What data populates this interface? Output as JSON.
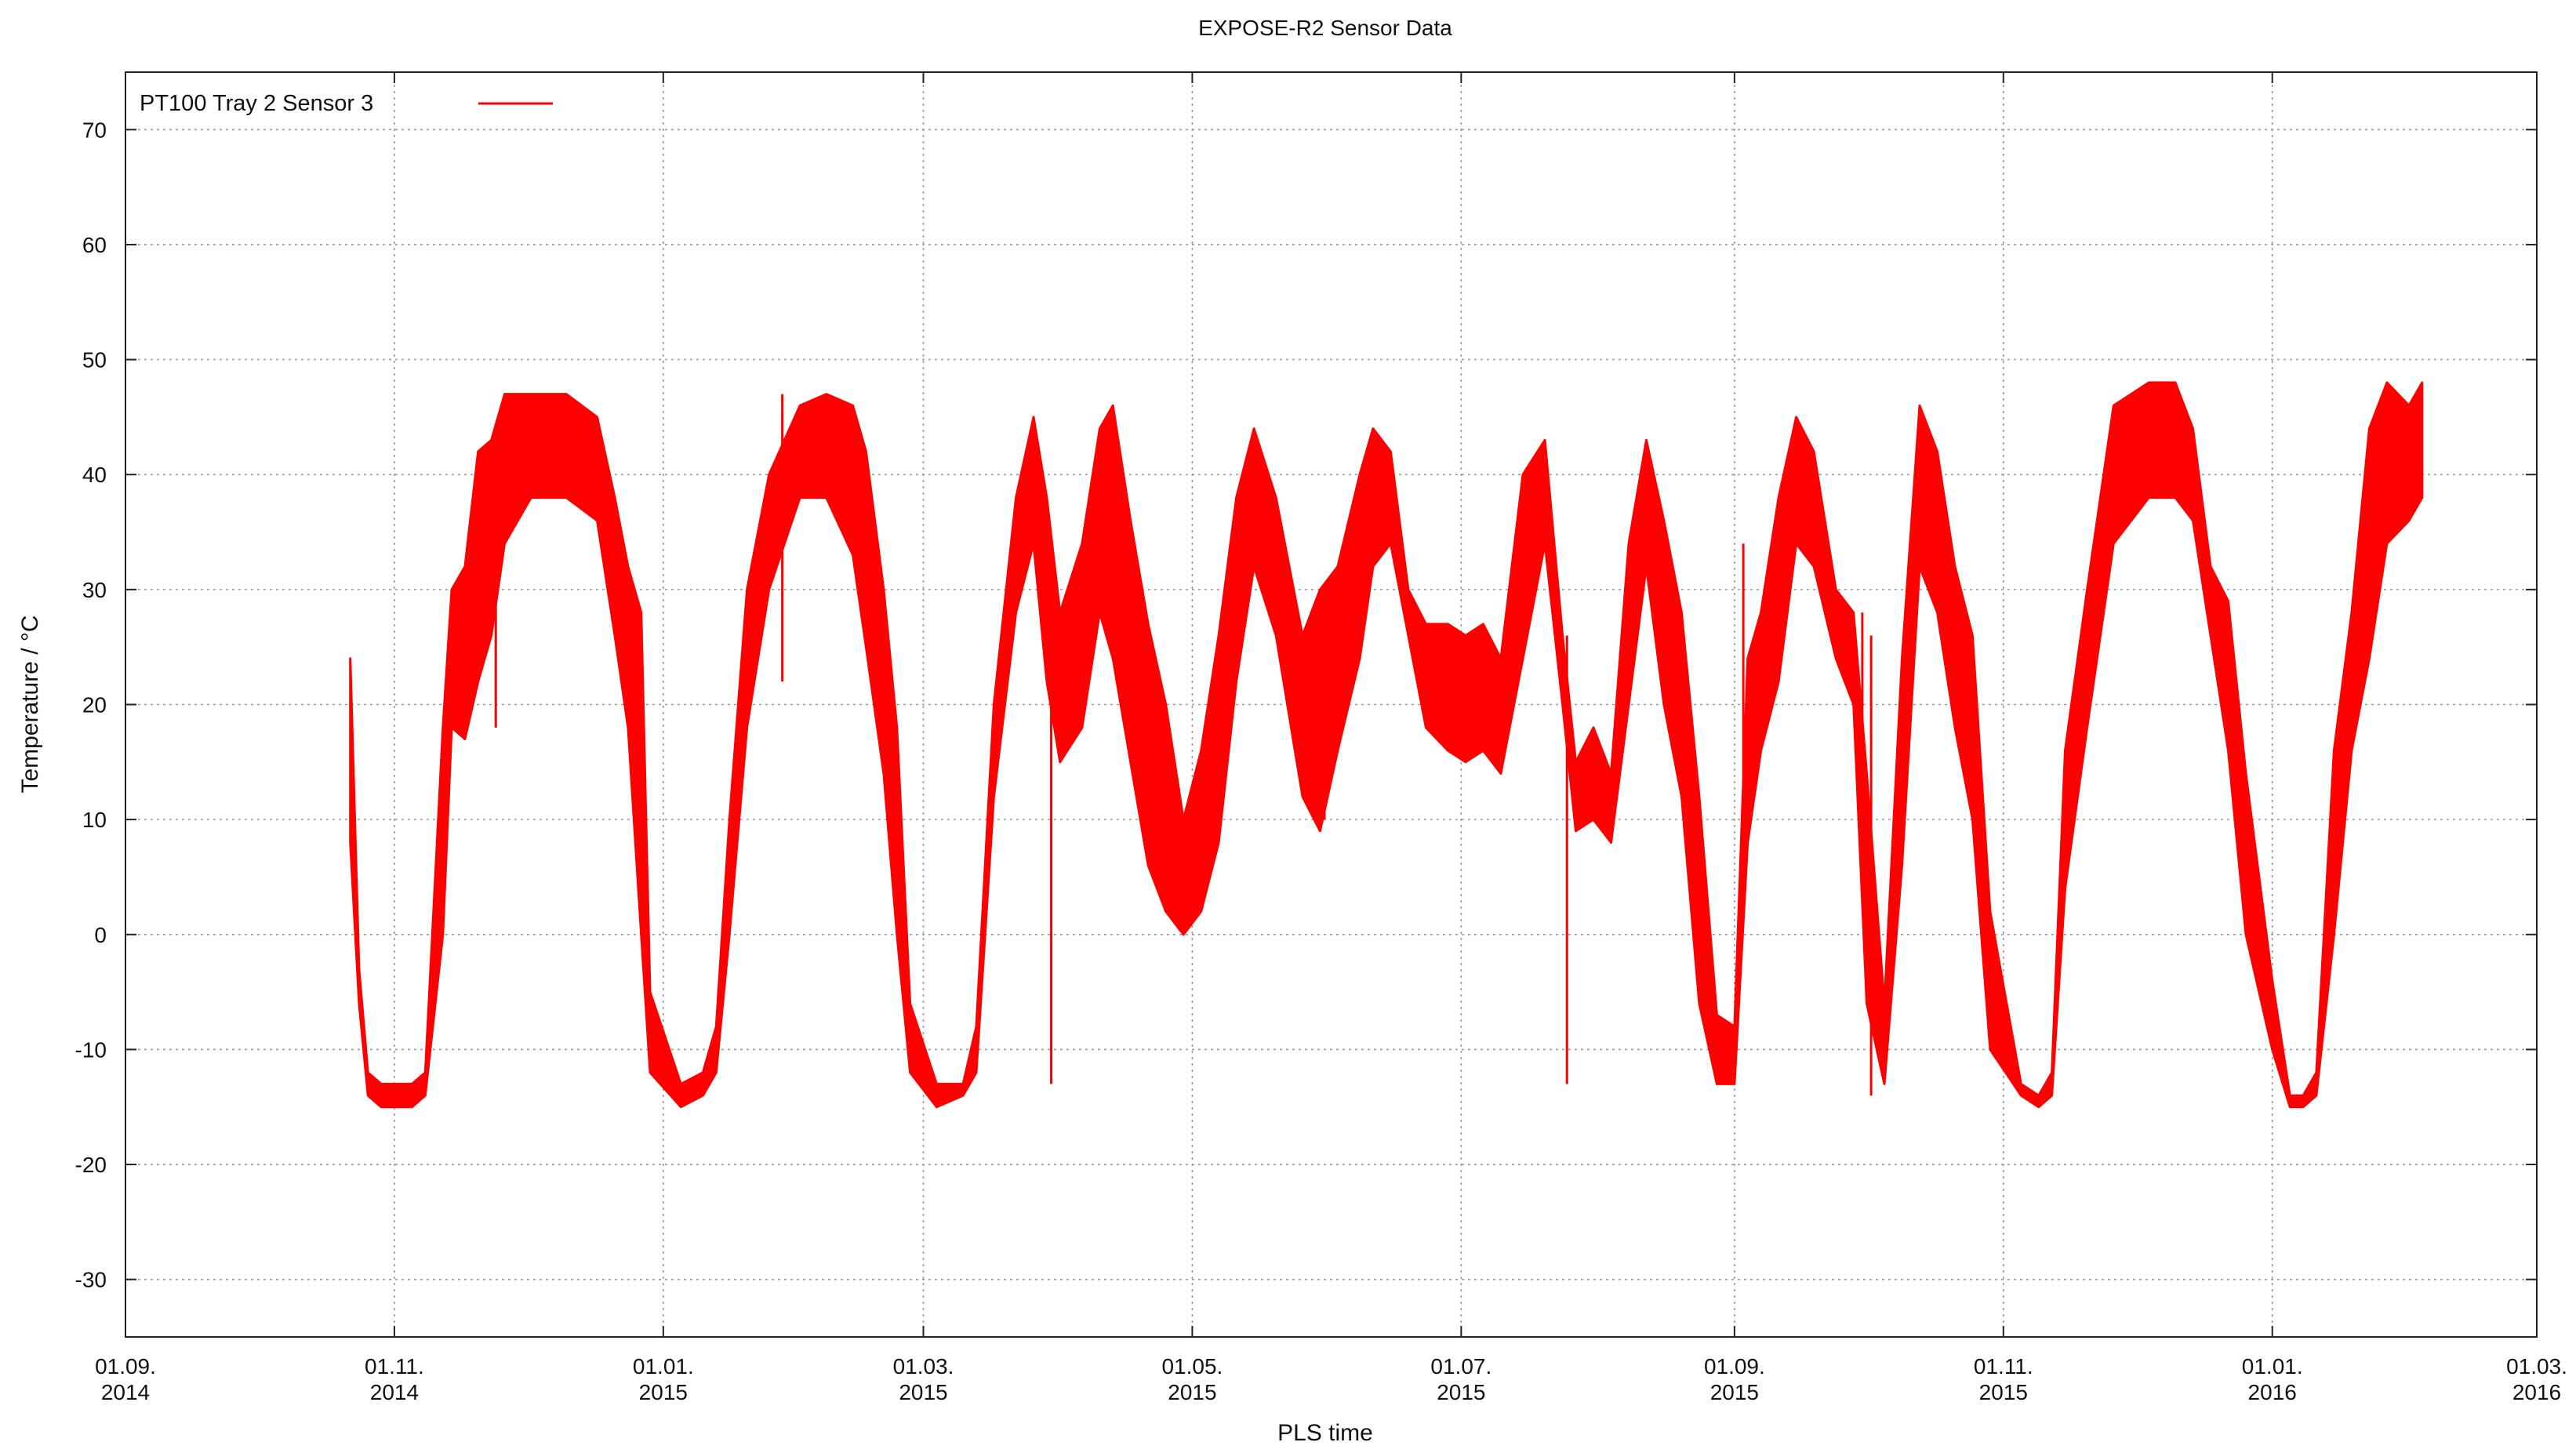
{
  "chart_data": {
    "type": "line",
    "title": "EXPOSE-R2 Sensor Data",
    "xlabel": "PLS time",
    "ylabel": "Temperature / °C",
    "ylim": [
      -35,
      75
    ],
    "xlim": [
      "2014-09-01",
      "2016-03-01"
    ],
    "grid": true,
    "legend_position": "top-left",
    "y_ticks": [
      -30,
      -20,
      -10,
      0,
      10,
      20,
      30,
      40,
      50,
      60,
      70
    ],
    "y_tick_labels": [
      "-30",
      "-20",
      "-10",
      "0",
      "10",
      "20",
      "30",
      "40",
      "50",
      "60",
      "70"
    ],
    "x_ticks": [
      "2014-09-01",
      "2014-11-01",
      "2015-01-01",
      "2015-03-01",
      "2015-05-01",
      "2015-07-01",
      "2015-09-01",
      "2015-11-01",
      "2016-01-01",
      "2016-03-01"
    ],
    "x_tick_labels": [
      {
        "day_month": "01.09.",
        "year": "2014"
      },
      {
        "day_month": "01.11.",
        "year": "2014"
      },
      {
        "day_month": "01.01.",
        "year": "2015"
      },
      {
        "day_month": "01.03.",
        "year": "2015"
      },
      {
        "day_month": "01.05.",
        "year": "2015"
      },
      {
        "day_month": "01.07.",
        "year": "2015"
      },
      {
        "day_month": "01.09.",
        "year": "2015"
      },
      {
        "day_month": "01.11.",
        "year": "2015"
      },
      {
        "day_month": "01.01.",
        "year": "2016"
      },
      {
        "day_month": "01.03.",
        "year": "2016"
      }
    ],
    "series": [
      {
        "name": "PT100 Tray 2 Sensor 3",
        "color": "#ff0000",
        "style": "band",
        "x": [
          "2014-10-22",
          "2014-10-24",
          "2014-10-26",
          "2014-10-29",
          "2014-11-05",
          "2014-11-08",
          "2014-11-12",
          "2014-11-14",
          "2014-11-17",
          "2014-11-20",
          "2014-11-23",
          "2014-11-26",
          "2014-12-02",
          "2014-12-10",
          "2014-12-17",
          "2014-12-21",
          "2014-12-24",
          "2014-12-27",
          "2014-12-29",
          "2015-01-05",
          "2015-01-10",
          "2015-01-13",
          "2015-01-16",
          "2015-01-20",
          "2015-01-25",
          "2015-02-01",
          "2015-02-07",
          "2015-02-13",
          "2015-02-16",
          "2015-02-20",
          "2015-02-23",
          "2015-02-26",
          "2015-03-04",
          "2015-03-10",
          "2015-03-13",
          "2015-03-17",
          "2015-03-22",
          "2015-03-26",
          "2015-03-29",
          "2015-04-01",
          "2015-04-06",
          "2015-04-10",
          "2015-04-13",
          "2015-04-17",
          "2015-04-21",
          "2015-04-25",
          "2015-04-29",
          "2015-05-03",
          "2015-05-07",
          "2015-05-11",
          "2015-05-15",
          "2015-05-20",
          "2015-05-26",
          "2015-05-30",
          "2015-06-03",
          "2015-06-08",
          "2015-06-11",
          "2015-06-15",
          "2015-06-19",
          "2015-06-23",
          "2015-06-28",
          "2015-07-02",
          "2015-07-06",
          "2015-07-10",
          "2015-07-15",
          "2015-07-20",
          "2015-07-24",
          "2015-07-27",
          "2015-07-31",
          "2015-08-04",
          "2015-08-08",
          "2015-08-12",
          "2015-08-16",
          "2015-08-20",
          "2015-08-24",
          "2015-08-28",
          "2015-09-01",
          "2015-09-04",
          "2015-09-07",
          "2015-09-11",
          "2015-09-15",
          "2015-09-19",
          "2015-09-24",
          "2015-09-28",
          "2015-10-01",
          "2015-10-05",
          "2015-10-09",
          "2015-10-13",
          "2015-10-17",
          "2015-10-21",
          "2015-10-25",
          "2015-10-29",
          "2015-11-05",
          "2015-11-09",
          "2015-11-12",
          "2015-11-15",
          "2015-11-20",
          "2015-11-26",
          "2015-12-04",
          "2015-12-10",
          "2015-12-14",
          "2015-12-18",
          "2015-12-22",
          "2015-12-26",
          "2016-01-01",
          "2016-01-05",
          "2016-01-08",
          "2016-01-11",
          "2016-01-15",
          "2016-01-19",
          "2016-01-23",
          "2016-01-27",
          "2016-02-01",
          "2016-02-04"
        ],
        "min": [
          8,
          -6,
          -14,
          -15,
          -15,
          -14,
          0,
          18,
          17,
          22,
          26,
          34,
          38,
          38,
          36,
          26,
          18,
          0,
          -12,
          -15,
          -14,
          -12,
          0,
          18,
          30,
          38,
          38,
          33,
          25,
          14,
          0,
          -12,
          -15,
          -14,
          -12,
          12,
          28,
          34,
          22,
          15,
          18,
          28,
          24,
          15,
          6,
          2,
          0,
          2,
          8,
          22,
          32,
          26,
          12,
          9,
          16,
          24,
          32,
          34,
          26,
          18,
          16,
          15,
          16,
          14,
          24,
          34,
          20,
          9,
          10,
          8,
          20,
          32,
          20,
          12,
          -6,
          -13,
          -13,
          8,
          16,
          22,
          34,
          32,
          24,
          20,
          -6,
          -13,
          6,
          32,
          28,
          18,
          10,
          -10,
          -14,
          -15,
          -14,
          4,
          18,
          34,
          38,
          38,
          36,
          26,
          16,
          0,
          -10,
          -15,
          -15,
          -14,
          0,
          16,
          24,
          34,
          36,
          38
        ],
        "max": [
          24,
          -3,
          -12,
          -13,
          -13,
          -12,
          18,
          30,
          32,
          42,
          43,
          47,
          47,
          47,
          45,
          38,
          32,
          28,
          -5,
          -13,
          -12,
          -8,
          10,
          30,
          40,
          46,
          47,
          46,
          42,
          30,
          18,
          -6,
          -13,
          -13,
          -8,
          20,
          38,
          45,
          38,
          28,
          34,
          44,
          46,
          36,
          27,
          20,
          10,
          16,
          26,
          38,
          44,
          38,
          26,
          30,
          32,
          40,
          44,
          42,
          30,
          27,
          27,
          26,
          27,
          24,
          40,
          43,
          26,
          15,
          18,
          14,
          34,
          43,
          36,
          28,
          12,
          -7,
          -8,
          24,
          28,
          38,
          45,
          42,
          30,
          28,
          14,
          -6,
          24,
          46,
          42,
          32,
          26,
          2,
          -13,
          -14,
          -12,
          16,
          30,
          46,
          48,
          48,
          44,
          32,
          29,
          14,
          -4,
          -14,
          -14,
          -12,
          16,
          28,
          44,
          48,
          46,
          48
        ],
        "spikes": [
          {
            "x": "2014-11-24",
            "min": 18,
            "max": 43
          },
          {
            "x": "2015-01-28",
            "min": 22,
            "max": 47
          },
          {
            "x": "2015-03-30",
            "min": -13,
            "max": 24
          },
          {
            "x": "2015-05-31",
            "min": 10,
            "max": 30
          },
          {
            "x": "2015-07-25",
            "min": -13,
            "max": 26
          },
          {
            "x": "2015-09-03",
            "min": 10,
            "max": 34
          },
          {
            "x": "2015-09-30",
            "min": 10,
            "max": 28
          },
          {
            "x": "2015-10-02",
            "min": -14,
            "max": 26
          }
        ]
      }
    ]
  }
}
